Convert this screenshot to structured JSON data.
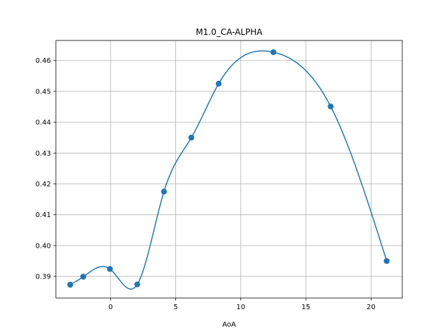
{
  "chart_data": {
    "type": "line",
    "title": "M1.0_CA-ALPHA",
    "xlabel": "AoA",
    "ylabel": "",
    "xlim": [
      -4.2,
      22.4
    ],
    "ylim": [
      0.383,
      0.4665
    ],
    "xticks": [
      0,
      5,
      10,
      15,
      20
    ],
    "yticks": [
      0.39,
      0.4,
      0.41,
      0.42,
      0.43,
      0.44,
      0.45,
      0.46
    ],
    "ytick_labels": [
      "0.39",
      "0.40",
      "0.41",
      "0.42",
      "0.43",
      "0.44",
      "0.45",
      "0.46"
    ],
    "grid": true,
    "legend": "none",
    "color": "#1f77b4",
    "series": [
      {
        "x": [
          -3.1,
          -2.1,
          -0.05,
          2.05,
          4.1,
          6.2,
          8.3,
          12.5,
          16.9,
          21.2
        ],
        "y": [
          0.3873,
          0.3899,
          0.3924,
          0.3874,
          0.4175,
          0.435,
          0.4525,
          0.4627,
          0.4451,
          0.395
        ],
        "curve": "smooth"
      }
    ]
  }
}
